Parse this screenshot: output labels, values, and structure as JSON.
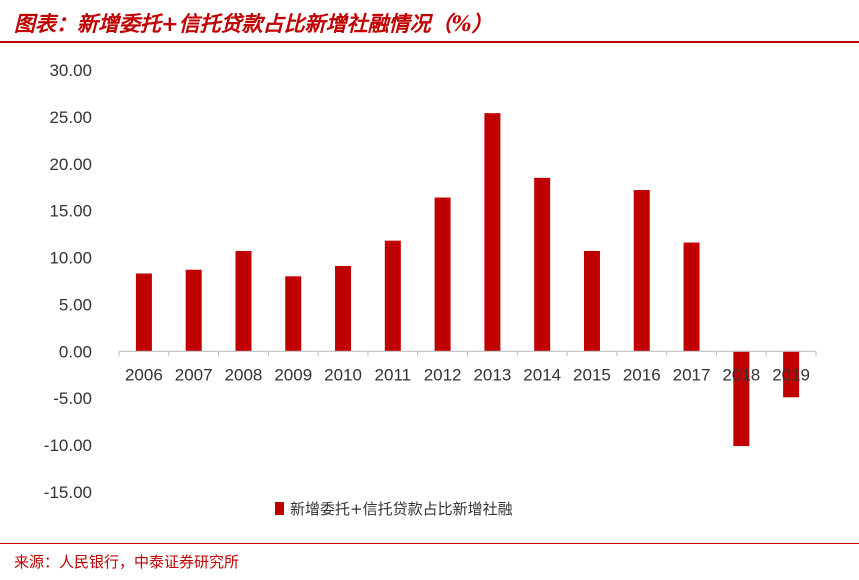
{
  "header": {
    "title": "图表：新增委托+信托贷款占比新增社融情况（%）"
  },
  "footer": {
    "source": "来源：人民银行，中泰证券研究所"
  },
  "colors": {
    "accent": "#c00000",
    "bar": "#c00000"
  },
  "chart_data": {
    "type": "bar",
    "categories": [
      "2006",
      "2007",
      "2008",
      "2009",
      "2010",
      "2011",
      "2012",
      "2013",
      "2014",
      "2015",
      "2016",
      "2017",
      "2018",
      "2019"
    ],
    "series": [
      {
        "name": "新增委托+信托贷款占比新增社融",
        "values": [
          8.3,
          8.7,
          10.7,
          8.0,
          9.1,
          11.8,
          16.4,
          25.4,
          18.5,
          10.7,
          17.2,
          11.6,
          -10.1,
          -4.9
        ]
      }
    ],
    "yticks": [
      "30.00",
      "25.00",
      "20.00",
      "15.00",
      "10.00",
      "5.00",
      "0.00",
      "-5.00",
      "-10.00",
      "-15.00"
    ],
    "ylim": [
      -15,
      30
    ],
    "legend_position": "bottom-center",
    "grid": false
  }
}
